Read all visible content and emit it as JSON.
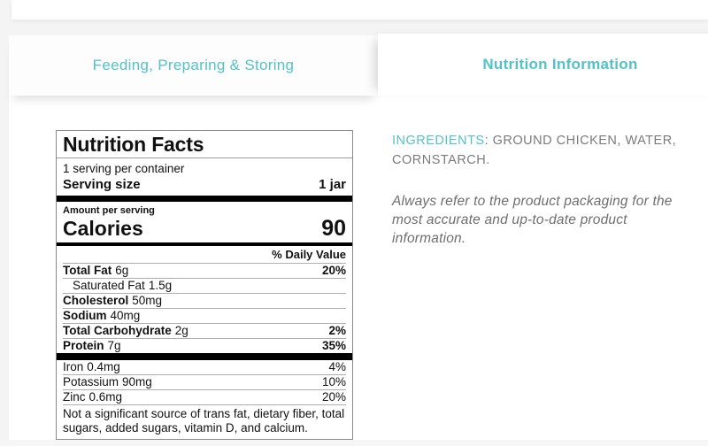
{
  "tabs": [
    {
      "label": "Feeding, Preparing & Storing",
      "active": false
    },
    {
      "label": "Nutrition Information",
      "active": true
    }
  ],
  "nutrition_label": {
    "title": "Nutrition Facts",
    "servings_per_container": "1 serving per container",
    "serving_size_label": "Serving size",
    "serving_size_value": "1 jar",
    "amount_per_serving": "Amount per serving",
    "calories_label": "Calories",
    "calories_value": "90",
    "daily_value_header": "% Daily Value",
    "rows": [
      {
        "name": "Total Fat",
        "amount": "6g",
        "dv": "20%"
      },
      {
        "name": "Saturated Fat",
        "amount": "1.5g",
        "dv": ""
      },
      {
        "name": "Cholesterol",
        "amount": "50mg",
        "dv": ""
      },
      {
        "name": "Sodium",
        "amount": "40mg",
        "dv": ""
      },
      {
        "name": "Total Carbohydrate",
        "amount": "2g",
        "dv": "2%"
      },
      {
        "name": "Protein",
        "amount": "7g",
        "dv": "35%"
      }
    ],
    "minerals": [
      {
        "name": "Iron",
        "amount": "0.4mg",
        "dv": "4%"
      },
      {
        "name": "Potassium",
        "amount": "90mg",
        "dv": "10%"
      },
      {
        "name": "Zinc",
        "amount": "0.6mg",
        "dv": "20%"
      }
    ],
    "footnote": "Not a significant source of trans fat, dietary fiber, total sugars, added sugars, vitamin D, and calcium."
  },
  "ingredients": {
    "label": "INGREDIENTS",
    "separator": ": ",
    "value": "GROUND CHICKEN, WATER, CORNSTARCH."
  },
  "disclaimer": "Always refer to the product packaging for the most accurate and up-to-date product information.",
  "colors": {
    "accent": "#52c2c8",
    "muted_text": "#7b7b7f",
    "italic_text": "#6e6e71"
  }
}
